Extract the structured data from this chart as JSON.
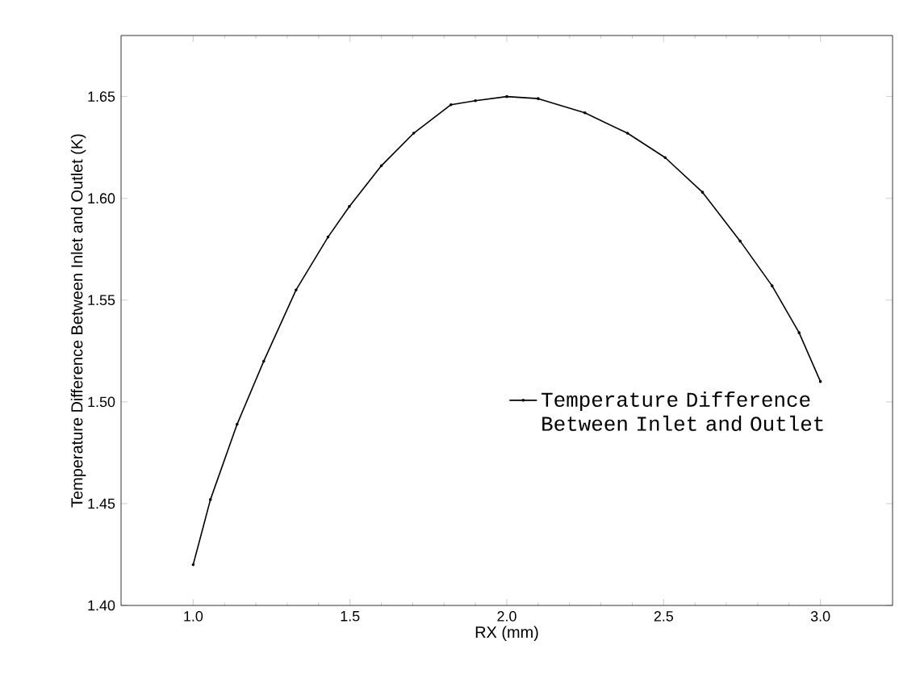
{
  "chart_data": {
    "type": "line",
    "xlabel": "RX (mm)",
    "ylabel": "Temperature Difference Between Inlet and Outlet (K)",
    "x": [
      1.0,
      1.055,
      1.14,
      1.225,
      1.328,
      1.43,
      1.498,
      1.6,
      1.703,
      1.822,
      1.9,
      2.0,
      2.1,
      2.249,
      2.385,
      2.505,
      2.624,
      2.744,
      2.846,
      2.932,
      3.0
    ],
    "series": [
      {
        "name": "Temperature Difference Between Inlet and Outlet",
        "color": "#000000",
        "values": [
          1.42,
          1.452,
          1.489,
          1.52,
          1.555,
          1.581,
          1.596,
          1.616,
          1.632,
          1.646,
          1.648,
          1.65,
          1.649,
          1.642,
          1.632,
          1.62,
          1.603,
          1.579,
          1.557,
          1.534,
          1.51
        ]
      }
    ],
    "xlim": [
      0.77,
      3.23
    ],
    "ylim": [
      1.4,
      1.68
    ],
    "xticks": [
      {
        "value": 1.0,
        "label": "1.0"
      },
      1.5,
      {
        "value": 2.0,
        "label": "2.0"
      },
      2.5,
      {
        "value": 3.0,
        "label": "3.0"
      }
    ],
    "yticks": [
      {
        "value": 1.4,
        "label": "1.40"
      },
      1.45,
      {
        "value": 1.5,
        "label": "1.50"
      },
      1.55,
      {
        "value": 1.6,
        "label": "1.60"
      },
      1.65
    ],
    "legend": "right",
    "marker": "circle",
    "line_style": "solid",
    "grid": false
  }
}
